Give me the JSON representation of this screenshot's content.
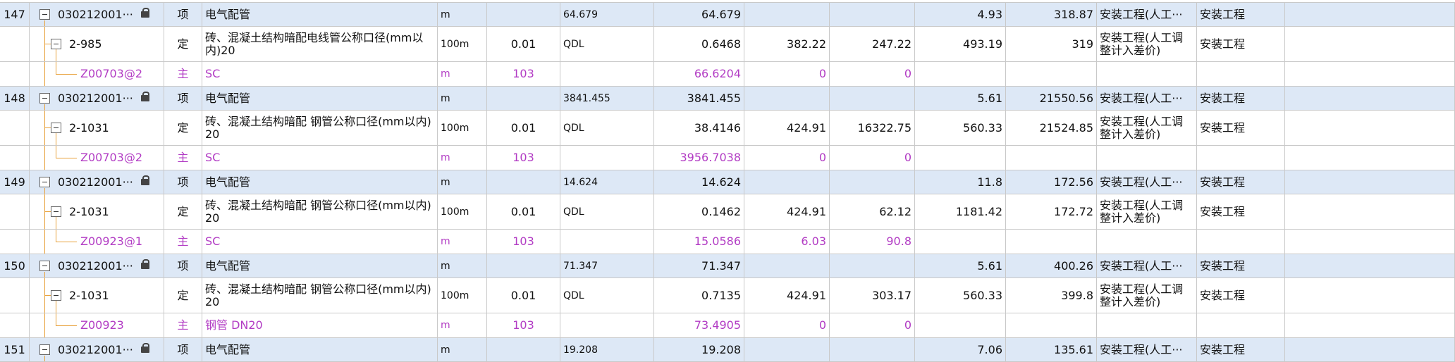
{
  "rows": [
    [
      "147",
      "030212001···",
      "项",
      "电气配管",
      "m",
      null,
      "64.679",
      "64.679",
      null,
      null,
      "4.93",
      "318.87",
      "安装工程(人工···",
      "安装工程"
    ],
    [
      null,
      "2-985",
      "定",
      "砖、混凝土结构暗配电线管公称口径(mm以内)20",
      "100m",
      "0.01",
      "QDL",
      "0.6468",
      "382.22",
      "247.22",
      "493.19",
      "319",
      "安装工程(人工调整计入差价)",
      "安装工程"
    ],
    [
      null,
      "Z00703@2",
      "主",
      "SC",
      "m",
      "103",
      null,
      "66.6204",
      "0",
      "0",
      null,
      null,
      null,
      null
    ],
    [
      "148",
      "030212001···",
      "项",
      "电气配管",
      "m",
      null,
      "3841.455",
      "3841.455",
      null,
      null,
      "5.61",
      "21550.56",
      "安装工程(人工···",
      "安装工程"
    ],
    [
      null,
      "2-1031",
      "定",
      "砖、混凝土结构暗配 钢管公称口径(mm以内)20",
      "100m",
      "0.01",
      "QDL",
      "38.4146",
      "424.91",
      "16322.75",
      "560.33",
      "21524.85",
      "安装工程(人工调整计入差价)",
      "安装工程"
    ],
    [
      null,
      "Z00703@2",
      "主",
      "SC",
      "m",
      "103",
      null,
      "3956.7038",
      "0",
      "0",
      null,
      null,
      null,
      null
    ],
    [
      "149",
      "030212001···",
      "项",
      "电气配管",
      "m",
      null,
      "14.624",
      "14.624",
      null,
      null,
      "11.8",
      "172.56",
      "安装工程(人工···",
      "安装工程"
    ],
    [
      null,
      "2-1031",
      "定",
      "砖、混凝土结构暗配 钢管公称口径(mm以内)20",
      "100m",
      "0.01",
      "QDL",
      "0.1462",
      "424.91",
      "62.12",
      "1181.42",
      "172.72",
      "安装工程(人工调整计入差价)",
      "安装工程"
    ],
    [
      null,
      "Z00923@1",
      "主",
      "SC",
      "m",
      "103",
      null,
      "15.0586",
      "6.03",
      "90.8",
      null,
      null,
      null,
      null
    ],
    [
      "150",
      "030212001···",
      "项",
      "电气配管",
      "m",
      null,
      "71.347",
      "71.347",
      null,
      null,
      "5.61",
      "400.26",
      "安装工程(人工···",
      "安装工程"
    ],
    [
      null,
      "2-1031",
      "定",
      "砖、混凝土结构暗配 钢管公称口径(mm以内)20",
      "100m",
      "0.01",
      "QDL",
      "0.7135",
      "424.91",
      "303.17",
      "560.33",
      "399.8",
      "安装工程(人工调整计入差价)",
      "安装工程"
    ],
    [
      null,
      "Z00923",
      "主",
      "钢管 DN20",
      "m",
      "103",
      null,
      "73.4905",
      "0",
      "0",
      null,
      null,
      null,
      null
    ],
    [
      "151",
      "030212001···",
      "项",
      "电气配管",
      "m",
      null,
      "19.208",
      "19.208",
      null,
      null,
      "7.06",
      "135.61",
      "安装工程(人工···",
      "安装工程"
    ]
  ]
}
